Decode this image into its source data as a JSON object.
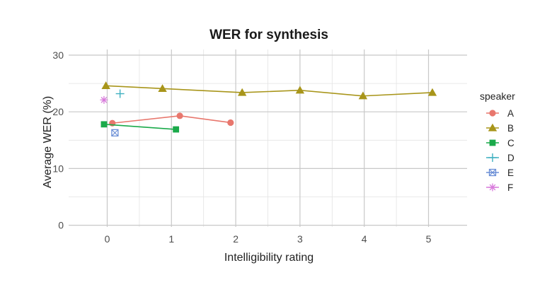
{
  "chart_data": {
    "type": "line",
    "title": "WER for synthesis",
    "xlabel": "Intelligibility rating",
    "ylabel": "Average WER (%)",
    "xlim": [
      -0.6,
      5.6
    ],
    "ylim": [
      -0.3,
      31
    ],
    "x_ticks": [
      0,
      1,
      2,
      3,
      4,
      5
    ],
    "y_ticks": [
      0,
      10,
      20,
      30
    ],
    "grid": true,
    "legend_title": "speaker",
    "legend_position": "right",
    "series": [
      {
        "name": "A",
        "color": "#e8776d",
        "marker": "circle",
        "points": [
          [
            0.08,
            18.0
          ],
          [
            1.13,
            19.3
          ],
          [
            1.92,
            18.1
          ]
        ]
      },
      {
        "name": "B",
        "color": "#a8951a",
        "marker": "triangle",
        "points": [
          [
            -0.02,
            24.6
          ],
          [
            0.86,
            24.1
          ],
          [
            2.1,
            23.4
          ],
          [
            3.0,
            23.8
          ],
          [
            3.98,
            22.8
          ],
          [
            5.06,
            23.4
          ]
        ]
      },
      {
        "name": "C",
        "color": "#1aaa4a",
        "marker": "square",
        "points": [
          [
            -0.05,
            17.8
          ],
          [
            1.07,
            16.9
          ]
        ]
      },
      {
        "name": "D",
        "color": "#3fb0c0",
        "marker": "plus",
        "points": [
          [
            0.2,
            23.2
          ]
        ]
      },
      {
        "name": "E",
        "color": "#6b8fd6",
        "marker": "square-cross",
        "points": [
          [
            0.12,
            16.3
          ]
        ]
      },
      {
        "name": "F",
        "color": "#d87adb",
        "marker": "asterisk",
        "points": [
          [
            -0.05,
            22.1
          ]
        ]
      }
    ]
  }
}
